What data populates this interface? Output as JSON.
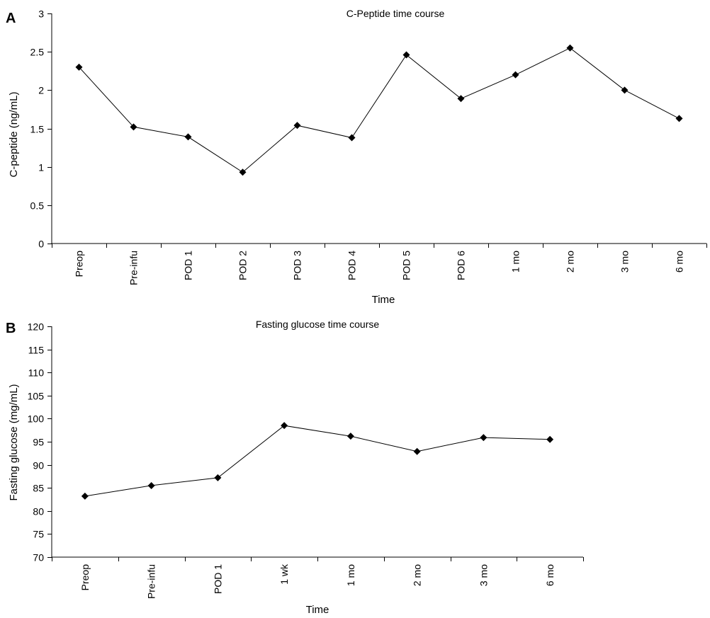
{
  "chart_data": [
    {
      "type": "line",
      "panel_label": "A",
      "title": "C-Peptide time course",
      "xlabel": "Time",
      "ylabel": "C-peptide (ng/mL)",
      "ylim": [
        0,
        3
      ],
      "yticks": [
        "0",
        "0.5",
        "1",
        "1.5",
        "2",
        "2.5",
        "3"
      ],
      "grid": false,
      "categories": [
        "Preop",
        "Pre-infu",
        "POD 1",
        "POD 2",
        "POD 3",
        "POD 4",
        "POD 5",
        "POD 6",
        "1 mo",
        "2 mo",
        "3 mo",
        "6 mo"
      ],
      "values": [
        2.3,
        1.52,
        1.39,
        0.93,
        1.54,
        1.38,
        2.46,
        1.89,
        2.2,
        2.55,
        2.0,
        1.63
      ]
    },
    {
      "type": "line",
      "panel_label": "B",
      "title": "Fasting glucose time course",
      "xlabel": "Time",
      "ylabel": "Fasting glucose  (mg/mL)",
      "ylim": [
        70,
        120
      ],
      "yticks": [
        "70",
        "75",
        "80",
        "85",
        "90",
        "95",
        "100",
        "105",
        "110",
        "115",
        "120"
      ],
      "grid": false,
      "categories": [
        "Preop",
        "Pre-infu",
        "POD 1",
        "1 wk",
        "1 mo",
        "2 mo",
        "3 mo",
        "6 mo"
      ],
      "values": [
        83.2,
        85.5,
        87.2,
        98.5,
        96.2,
        92.9,
        95.9,
        95.5
      ]
    }
  ]
}
